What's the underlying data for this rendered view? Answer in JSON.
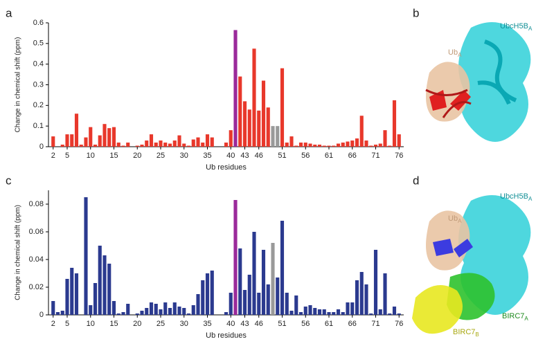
{
  "chart_data": [
    {
      "type": "bar",
      "label": "a",
      "xlabel": "Ub residues",
      "ylabel": "Change in chemical shift (ppm)",
      "color": "#e8382b",
      "x": [
        2,
        3,
        4,
        5,
        6,
        7,
        8,
        9,
        10,
        11,
        12,
        13,
        14,
        15,
        16,
        17,
        18,
        19,
        20,
        21,
        22,
        23,
        24,
        25,
        26,
        27,
        28,
        29,
        30,
        31,
        32,
        33,
        34,
        35,
        36,
        37,
        38,
        39,
        40,
        41,
        42,
        43,
        44,
        45,
        46,
        47,
        48,
        49,
        50,
        51,
        52,
        53,
        54,
        55,
        56,
        57,
        58,
        59,
        60,
        61,
        62,
        63,
        64,
        65,
        66,
        67,
        68,
        69,
        70,
        71,
        72,
        73,
        74,
        75,
        76
      ],
      "values": [
        0.05,
        0,
        0.01,
        0.06,
        0.06,
        0.16,
        0.01,
        0.045,
        0.095,
        0.01,
        0.055,
        0.11,
        0.09,
        0.095,
        0.02,
        0.005,
        0.02,
        null,
        0.005,
        0.01,
        0.03,
        0.06,
        0.02,
        0.03,
        0.02,
        0.015,
        0.03,
        0.055,
        0.015,
        0.005,
        0.035,
        0.045,
        0.02,
        0.06,
        0.045,
        null,
        null,
        0.02,
        0.08,
        0.565,
        0.34,
        0.22,
        0.18,
        0.475,
        0.175,
        0.32,
        0.19,
        0.1,
        0.1,
        0.38,
        0.02,
        0.05,
        0.005,
        0.02,
        0.02,
        0.015,
        0.01,
        0.01,
        0.005,
        0.005,
        0.005,
        0.015,
        0.02,
        0.025,
        0.03,
        0.04,
        0.15,
        0.03,
        0.005,
        0.01,
        0.015,
        0.08,
        0.005,
        0.225,
        0.06
      ],
      "highlights": [
        {
          "x": 41,
          "color": "#9b2a9b"
        },
        {
          "x": 49,
          "color": "#999999"
        },
        {
          "x": 50,
          "color": "#999999"
        }
      ],
      "xlim": [
        1,
        77
      ],
      "xticks": [
        2,
        5,
        10,
        15,
        20,
        25,
        30,
        35,
        40,
        43,
        46,
        51,
        56,
        61,
        66,
        71,
        76
      ],
      "ylim": [
        0,
        0.6
      ],
      "yticks": [
        0,
        0.1,
        0.2,
        0.3,
        0.4,
        0.5,
        0.6
      ]
    },
    {
      "type": "bar",
      "label": "c",
      "xlabel": "Ub residues",
      "ylabel": "Change in chemical shift (ppm)",
      "color": "#2b3a8f",
      "x": [
        2,
        3,
        4,
        5,
        6,
        7,
        8,
        9,
        10,
        11,
        12,
        13,
        14,
        15,
        16,
        17,
        18,
        19,
        20,
        21,
        22,
        23,
        24,
        25,
        26,
        27,
        28,
        29,
        30,
        31,
        32,
        33,
        34,
        35,
        36,
        37,
        38,
        39,
        40,
        41,
        42,
        43,
        44,
        45,
        46,
        47,
        48,
        49,
        50,
        51,
        52,
        53,
        54,
        55,
        56,
        57,
        58,
        59,
        60,
        61,
        62,
        63,
        64,
        65,
        66,
        67,
        68,
        69,
        70,
        71,
        72,
        73,
        74,
        75,
        76
      ],
      "values": [
        0.01,
        0.002,
        0.003,
        0.026,
        0.034,
        0.03,
        null,
        0.085,
        0.007,
        0.023,
        0.05,
        0.043,
        0.037,
        0.01,
        0.001,
        0.002,
        0.008,
        null,
        0.001,
        0.003,
        0.005,
        0.009,
        0.008,
        0.004,
        0.009,
        0.005,
        0.009,
        0.006,
        0.005,
        0.001,
        0.007,
        0.015,
        0.025,
        0.03,
        0.032,
        null,
        null,
        0.002,
        0.016,
        0.083,
        0.048,
        0.018,
        0.029,
        0.06,
        0.016,
        0.047,
        0.022,
        0.052,
        0.027,
        0.068,
        0.016,
        0.003,
        0.014,
        0.002,
        0.006,
        0.007,
        0.005,
        0.004,
        0.004,
        0.002,
        0.002,
        0.004,
        0.002,
        0.009,
        0.009,
        0.025,
        0.031,
        0.022,
        0.001,
        0.047,
        0.004,
        0.03,
        0.001,
        0.006,
        0.001
      ],
      "highlights": [
        {
          "x": 41,
          "color": "#9b2a9b"
        },
        {
          "x": 49,
          "color": "#999999"
        }
      ],
      "xlim": [
        1,
        77
      ],
      "xticks": [
        2,
        5,
        10,
        15,
        20,
        25,
        30,
        35,
        40,
        43,
        46,
        51,
        56,
        61,
        66,
        71,
        76
      ],
      "ylim": [
        0,
        0.09
      ],
      "yticks": [
        0,
        0.02,
        0.04,
        0.06,
        0.08
      ]
    }
  ],
  "structures": {
    "b": {
      "letter": "b",
      "labels": [
        {
          "name": "UbcH5B",
          "sub": "A"
        },
        {
          "name": "Ub",
          "sub": "A"
        }
      ]
    },
    "d": {
      "letter": "d",
      "labels": [
        {
          "name": "UbcH5B",
          "sub": "A"
        },
        {
          "name": "Ub",
          "sub": "A"
        },
        {
          "name": "BIRC7",
          "sub": "A"
        },
        {
          "name": "BIRC7",
          "sub": "B"
        }
      ]
    }
  }
}
